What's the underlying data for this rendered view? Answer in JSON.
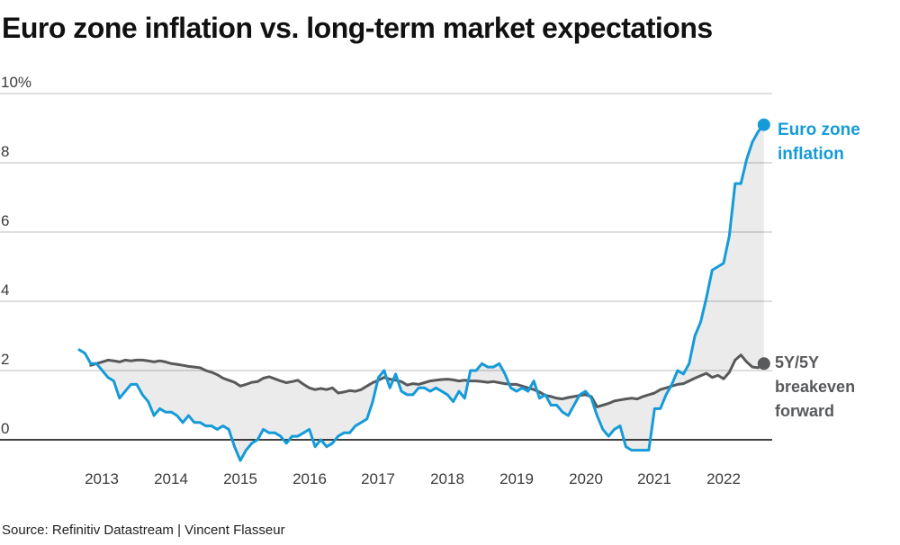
{
  "header": {
    "title": "Euro zone inflation vs. long-term market expectations"
  },
  "footer": {
    "source": "Source: Refinitiv Datastream | Vincent Flasseur"
  },
  "colors": {
    "accent_blue": "#159bd8",
    "series_gray": "#58595b",
    "gridline": "#c9c9c9",
    "zero_line": "#000000",
    "fill_between": "rgba(0,0,0,0.08)",
    "title_text": "#111111",
    "axis_text": "#3b3b3b"
  },
  "chart_data": {
    "type": "line",
    "title": "Euro zone inflation vs. long-term market expectations",
    "xlabel": "",
    "ylabel": "%",
    "x_unit": "month",
    "x_start": "2012-09",
    "x_end": "2022-08",
    "grid": "horizontal",
    "ylim": [
      -1.3,
      10.4
    ],
    "x_ticks": [
      "2013",
      "2014",
      "2015",
      "2016",
      "2017",
      "2018",
      "2019",
      "2020",
      "2021",
      "2022"
    ],
    "y_ticks": [
      "10%",
      "8",
      "6",
      "4",
      "2",
      "0"
    ],
    "y_tick_values": [
      10,
      8,
      6,
      4,
      2,
      0
    ],
    "legend_position": "line-end-labels-right",
    "fill_between": {
      "between": [
        "Euro zone inflation",
        "5Y/5Y breakeven forward"
      ],
      "color": "rgba(0,0,0,0.08)"
    },
    "series": [
      {
        "name": "Euro zone inflation",
        "label": "Euro zone inflation",
        "color": "#159bd8",
        "end_dot": true,
        "end_value": 9.1,
        "values": [
          2.6,
          2.5,
          2.2,
          2.2,
          2.0,
          1.8,
          1.7,
          1.2,
          1.4,
          1.6,
          1.6,
          1.3,
          1.1,
          0.7,
          0.9,
          0.8,
          0.8,
          0.7,
          0.5,
          0.7,
          0.5,
          0.5,
          0.4,
          0.4,
          0.3,
          0.4,
          0.3,
          -0.2,
          -0.6,
          -0.3,
          -0.1,
          0.0,
          0.3,
          0.2,
          0.2,
          0.1,
          -0.1,
          0.1,
          0.1,
          0.2,
          0.3,
          -0.2,
          0.0,
          -0.2,
          -0.1,
          0.1,
          0.2,
          0.2,
          0.4,
          0.5,
          0.6,
          1.1,
          1.8,
          2.0,
          1.5,
          1.9,
          1.4,
          1.3,
          1.3,
          1.5,
          1.5,
          1.4,
          1.5,
          1.4,
          1.3,
          1.1,
          1.4,
          1.2,
          2.0,
          2.0,
          2.2,
          2.1,
          2.1,
          2.2,
          1.9,
          1.5,
          1.4,
          1.5,
          1.4,
          1.7,
          1.2,
          1.3,
          1.0,
          1.0,
          0.8,
          0.7,
          1.0,
          1.3,
          1.4,
          1.2,
          0.7,
          0.3,
          0.1,
          0.3,
          0.4,
          -0.2,
          -0.3,
          -0.3,
          -0.3,
          -0.3,
          0.9,
          0.9,
          1.3,
          1.6,
          2.0,
          1.9,
          2.2,
          3.0,
          3.4,
          4.1,
          4.9,
          5.0,
          5.1,
          5.9,
          7.4,
          7.4,
          8.1,
          8.6,
          8.9,
          9.1
        ]
      },
      {
        "name": "5Y/5Y breakeven forward",
        "label": "5Y/5Y breakeven forward",
        "color": "#58595b",
        "end_dot": true,
        "end_value": 2.2,
        "values": [
          null,
          null,
          2.15,
          2.2,
          2.25,
          2.3,
          2.28,
          2.25,
          2.3,
          2.28,
          2.3,
          2.3,
          2.28,
          2.25,
          2.28,
          2.25,
          2.2,
          2.18,
          2.15,
          2.12,
          2.1,
          2.08,
          2.0,
          1.95,
          1.88,
          1.78,
          1.72,
          1.66,
          1.55,
          1.6,
          1.66,
          1.68,
          1.78,
          1.82,
          1.76,
          1.7,
          1.65,
          1.68,
          1.72,
          1.6,
          1.5,
          1.45,
          1.48,
          1.45,
          1.5,
          1.35,
          1.38,
          1.42,
          1.4,
          1.45,
          1.55,
          1.65,
          1.72,
          1.8,
          1.75,
          1.72,
          1.68,
          1.58,
          1.62,
          1.6,
          1.65,
          1.7,
          1.72,
          1.74,
          1.75,
          1.73,
          1.7,
          1.72,
          1.7,
          1.7,
          1.68,
          1.66,
          1.68,
          1.65,
          1.62,
          1.6,
          1.6,
          1.55,
          1.5,
          1.45,
          1.38,
          1.28,
          1.25,
          1.2,
          1.18,
          1.22,
          1.25,
          1.28,
          1.3,
          1.25,
          0.95,
          1.0,
          1.05,
          1.12,
          1.15,
          1.18,
          1.2,
          1.18,
          1.25,
          1.3,
          1.35,
          1.45,
          1.5,
          1.55,
          1.6,
          1.62,
          1.7,
          1.78,
          1.85,
          1.92,
          1.8,
          1.86,
          1.76,
          1.95,
          2.3,
          2.45,
          2.25,
          2.1,
          2.08,
          2.2
        ]
      }
    ]
  }
}
